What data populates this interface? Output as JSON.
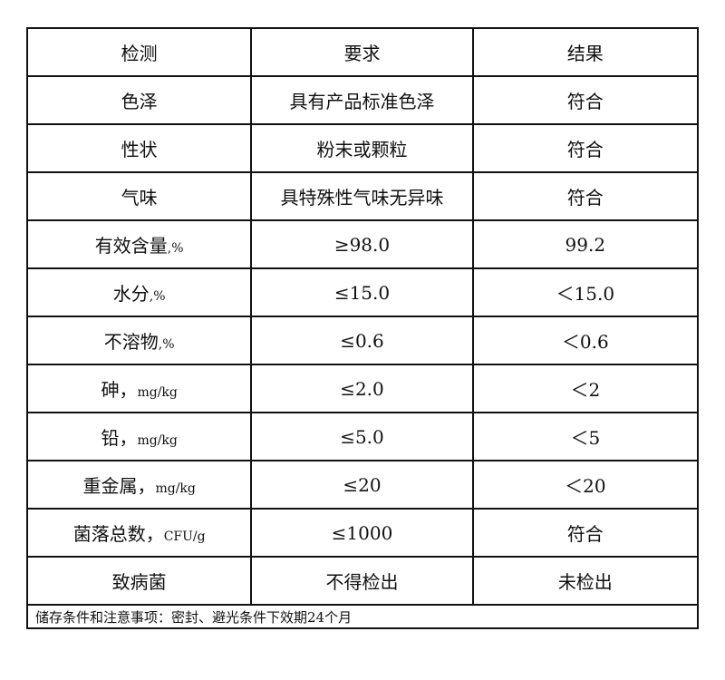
{
  "table": {
    "headers": [
      "检测",
      "要求",
      "结果"
    ],
    "rows": [
      {
        "item": "色泽",
        "unit": "",
        "requirement": "具有产品标准色泽",
        "result": "符合"
      },
      {
        "item": "性状",
        "unit": "",
        "requirement": "粉末或颗粒",
        "result": "符合"
      },
      {
        "item": "气味",
        "unit": "",
        "requirement": "具特殊性气味无异味",
        "result": "符合"
      },
      {
        "item": "有效含量",
        "unit": ",%",
        "requirement": "≥98.0",
        "result": "99.2"
      },
      {
        "item": "水分",
        "unit": ",%",
        "requirement": "≤15.0",
        "result": "＜15.0"
      },
      {
        "item": "不溶物",
        "unit": ",%",
        "requirement": "≤0.6",
        "result": "＜0.6"
      },
      {
        "item": "砷，",
        "unit": "mg/kg",
        "requirement": "≤2.0",
        "result": "＜2"
      },
      {
        "item": "铅，",
        "unit": "mg/kg",
        "requirement": "≤5.0",
        "result": "＜5"
      },
      {
        "item": "重金属，",
        "unit": "mg/kg",
        "requirement": "≤20",
        "result": "＜20"
      },
      {
        "item": "菌落总数，",
        "unit": "CFU/g",
        "requirement": "≤1000",
        "result": "符合"
      },
      {
        "item": "致病菌",
        "unit": "",
        "requirement": "不得检出",
        "result": "未检出"
      }
    ],
    "note": "储存条件和注意事项：密封、避光条件下效期24个月"
  }
}
